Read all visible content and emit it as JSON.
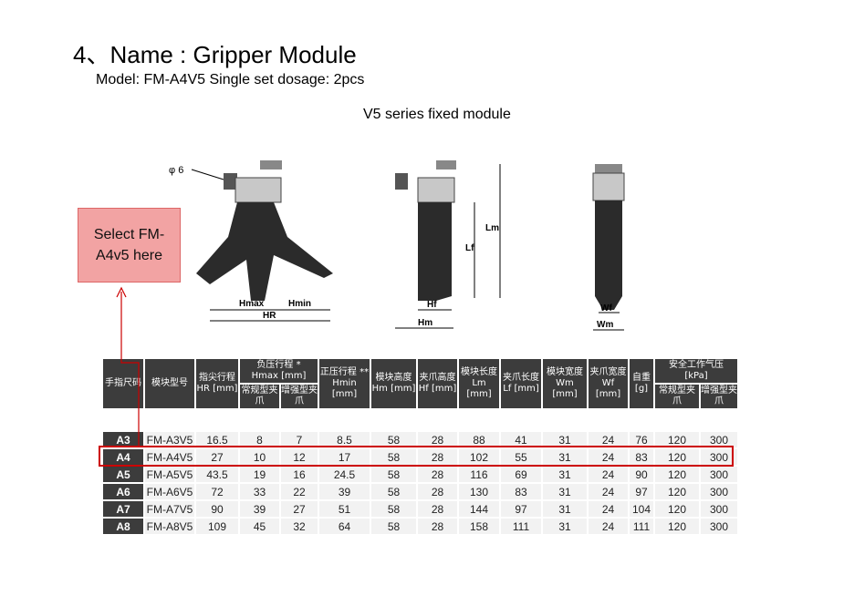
{
  "title": "4、Name : Gripper Module",
  "model_line": "Model: FM-A4V5  Single set dosage: 2pcs",
  "series_label": "V5 series fixed module",
  "callout": "Select FM-A4v5 here",
  "highlight_color": "#cc0000",
  "diagram_labels": {
    "phi": "φ 6",
    "hmax": "Hmax",
    "hmin": "Hmin",
    "hr": "HR",
    "hf": "Hf",
    "hm": "Hm",
    "lf": "Lf",
    "lm": "Lm",
    "wf": "Wf",
    "wm": "Wm"
  },
  "table": {
    "headers": {
      "size": "手指尺码",
      "model": "模块型号",
      "hr": "指尖行程",
      "hr_unit": "HR [mm]",
      "hmax": "负压行程 *",
      "hmax_unit": "Hmax [mm]",
      "normal": "常规型夹爪",
      "strong": "增强型夹爪",
      "hmin": "正压行程 **",
      "hmin_unit": "Hmin [mm]",
      "hm": "模块高度",
      "hm_unit": "Hm [mm]",
      "hf": "夹爪高度",
      "hf_unit": "Hf [mm]",
      "lm": "模块长度",
      "lm_unit": "Lm [mm]",
      "lf": "夹爪长度",
      "lf_unit": "Lf  [mm]",
      "wm": "模块宽度",
      "wm_unit": "Wm [mm]",
      "wf": "夹爪宽度",
      "wf_unit": "Wf [mm]",
      "weight": "自重",
      "weight_unit": "[g]",
      "pressure": "安全工作气压",
      "pressure_unit": "[kPa]",
      "p_normal": "常规型夹爪",
      "p_strong": "增强型夹爪"
    },
    "rows": [
      [
        "A3",
        "FM-A3V5",
        "16.5",
        "8",
        "7",
        "8.5",
        "58",
        "28",
        "88",
        "41",
        "31",
        "24",
        "76",
        "120",
        "300"
      ],
      [
        "A4",
        "FM-A4V5",
        "27",
        "10",
        "12",
        "17",
        "58",
        "28",
        "102",
        "55",
        "31",
        "24",
        "83",
        "120",
        "300"
      ],
      [
        "A5",
        "FM-A5V5",
        "43.5",
        "19",
        "16",
        "24.5",
        "58",
        "28",
        "116",
        "69",
        "31",
        "24",
        "90",
        "120",
        "300"
      ],
      [
        "A6",
        "FM-A6V5",
        "72",
        "33",
        "22",
        "39",
        "58",
        "28",
        "130",
        "83",
        "31",
        "24",
        "97",
        "120",
        "300"
      ],
      [
        "A7",
        "FM-A7V5",
        "90",
        "39",
        "27",
        "51",
        "58",
        "28",
        "144",
        "97",
        "31",
        "24",
        "104",
        "120",
        "300"
      ],
      [
        "A8",
        "FM-A8V5",
        "109",
        "45",
        "32",
        "64",
        "58",
        "28",
        "158",
        "111",
        "31",
        "24",
        "111",
        "120",
        "300"
      ]
    ],
    "selected_row": "A4"
  }
}
